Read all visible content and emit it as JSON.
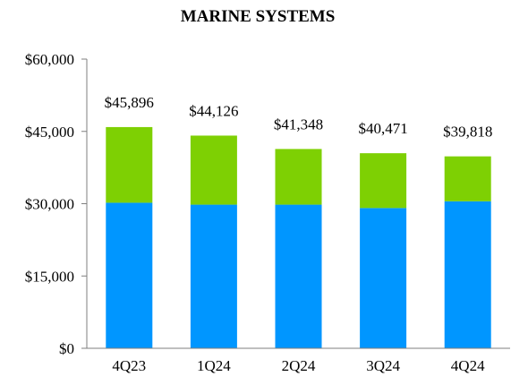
{
  "chart_data": {
    "type": "bar",
    "stacked": true,
    "title": "MARINE SYSTEMS",
    "categories": [
      "4Q23",
      "1Q24",
      "2Q24",
      "3Q24",
      "4Q24"
    ],
    "series": [
      {
        "values": [
          30200,
          29800,
          29800,
          29100,
          30500
        ],
        "color": "#0096ff"
      },
      {
        "values": [
          15696,
          14326,
          11548,
          11371,
          9318
        ],
        "color": "#7ed003"
      }
    ],
    "totals": [
      45896,
      44126,
      41348,
      40471,
      39818
    ],
    "total_labels": [
      "$45,896",
      "$44,126",
      "$41,348",
      "$40,471",
      "$39,818"
    ],
    "yticks": [
      0,
      15000,
      30000,
      45000,
      60000
    ],
    "ytick_labels": [
      "$0",
      "$15,000",
      "$30,000",
      "$45,000",
      "$60,000"
    ],
    "ylim": [
      0,
      60000
    ],
    "xlabel": "",
    "ylabel": "",
    "grid": false,
    "legend": "none"
  }
}
